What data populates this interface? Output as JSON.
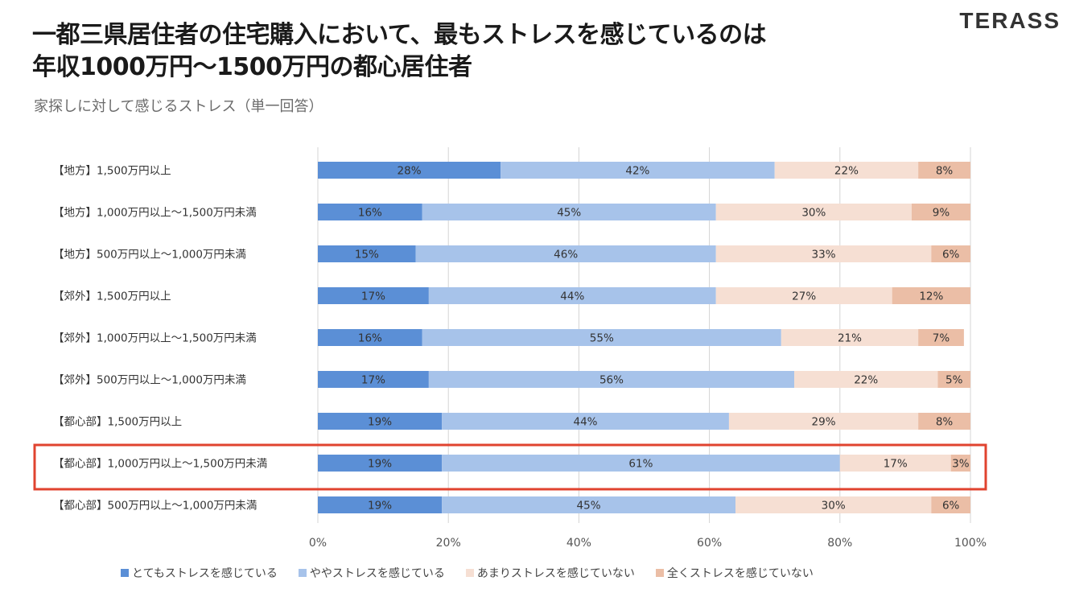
{
  "header": {
    "title_line1": "一都三県居住者の住宅購入において、最もストレスを感じているのは",
    "title_line2": "年収1000万円〜1500万円の都心居住者",
    "subtitle": "家探しに対して感じるストレス（単一回答）",
    "logo": "TERASS"
  },
  "chart_data": {
    "type": "bar",
    "orientation": "horizontal",
    "stacked": true,
    "percent_stacked": true,
    "categories": [
      "【地方】1,500万円以上",
      "【地方】1,000万円以上～1,500万円未満",
      "【地方】500万円以上～1,000万円未満",
      "【郊外】1,500万円以上",
      "【郊外】1,000万円以上～1,500万円未満",
      "【郊外】500万円以上～1,000万円未満",
      "【都心部】1,500万円以上",
      "【都心部】1,000万円以上～1,500万円未満",
      "【都心部】500万円以上～1,000万円未満"
    ],
    "series": [
      {
        "name": "とてもストレスを感じている",
        "color": "#5b8fd6",
        "values": [
          28,
          16,
          15,
          17,
          16,
          17,
          19,
          19,
          19
        ]
      },
      {
        "name": "ややストレスを感じている",
        "color": "#a7c3ea",
        "values": [
          42,
          45,
          46,
          44,
          55,
          56,
          44,
          61,
          45
        ]
      },
      {
        "name": "あまりストレスを感じていない",
        "color": "#f6dfd3",
        "values": [
          22,
          30,
          33,
          27,
          21,
          22,
          29,
          17,
          30
        ]
      },
      {
        "name": "全くストレスを感じていない",
        "color": "#ebbea6",
        "values": [
          8,
          9,
          6,
          12,
          7,
          5,
          8,
          3,
          6
        ]
      }
    ],
    "xlim": [
      0,
      100
    ],
    "x_ticks": [
      "0%",
      "20%",
      "40%",
      "60%",
      "80%",
      "100%"
    ],
    "grid": true,
    "legend_position": "bottom",
    "highlight_category_index": 7,
    "highlight_color": "#e0432f"
  }
}
